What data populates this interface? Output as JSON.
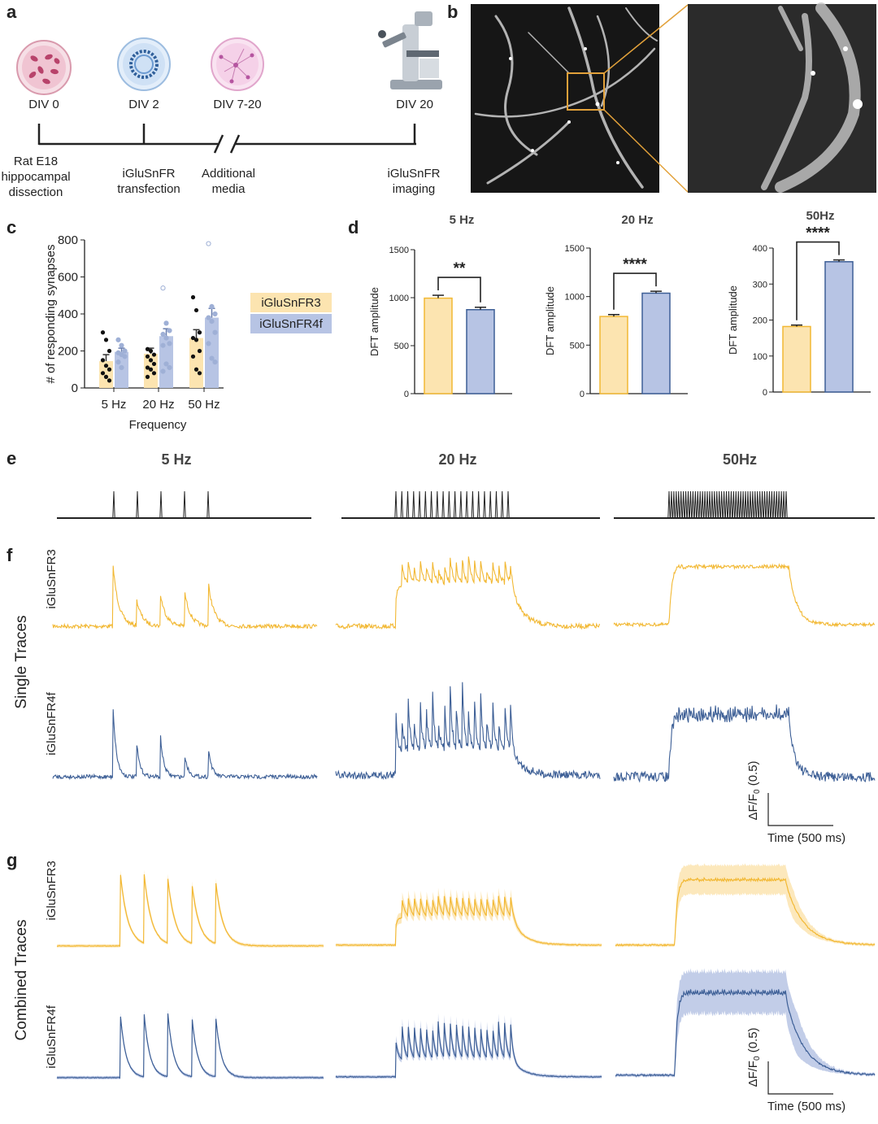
{
  "panels": {
    "a": "a",
    "b": "b",
    "c": "c",
    "d": "d",
    "e": "e",
    "f": "f",
    "g": "g"
  },
  "timeline": {
    "points": [
      {
        "day": "DIV 0",
        "desc1": "Rat E18",
        "desc2": "hippocampal",
        "desc3": "dissection"
      },
      {
        "day": "DIV 2",
        "desc1": "iGluSnFR",
        "desc2": "transfection"
      },
      {
        "day": "DIV 7-20",
        "desc1": "Additional",
        "desc2": "media"
      },
      {
        "day": "DIV 20",
        "desc1": "iGluSnFR",
        "desc2": "imaging"
      }
    ]
  },
  "legend": {
    "r3": "iGluSnFR3",
    "r4f": "iGluSnFR4f"
  },
  "colors": {
    "r3": "#f2b833",
    "r3_fill": "#fce4b0",
    "r4f": "#3d5f96",
    "r4f_fill": "#b7c4e4",
    "axis": "#222222"
  },
  "chart_data": [
    {
      "type": "bar",
      "id": "c",
      "title": "",
      "xlabel": "Frequency",
      "ylabel": "# of responding synapses",
      "categories": [
        "5 Hz",
        "20 Hz",
        "50 Hz"
      ],
      "ylim": [
        0,
        800
      ],
      "yticks": [
        "0",
        "200",
        "400",
        "600",
        "800"
      ],
      "series": [
        {
          "name": "iGluSnFR3",
          "values": [
            145,
            185,
            270
          ],
          "sem": [
            35,
            30,
            45
          ],
          "points": [
            [
              300,
              260,
              200,
              150,
              120,
              100,
              80,
              60,
              40
            ],
            [
              210,
              200,
              180,
              170,
              150,
              130,
              110,
              100,
              80,
              60
            ],
            [
              490,
              420,
              300,
              270,
              260,
              200,
              170,
              100,
              80
            ]
          ]
        },
        {
          "name": "iGluSnFR4f",
          "values": [
            195,
            280,
            380
          ],
          "sem": [
            20,
            40,
            50
          ],
          "points": [
            [
              260,
              230,
              200,
              190,
              180,
              170,
              140,
              110
            ],
            [
              540,
              350,
              310,
              290,
              270,
              240,
              230,
              130,
              110,
              90
            ],
            [
              780,
              440,
              400,
              380,
              360,
              300,
              240,
              160,
              140
            ]
          ]
        }
      ]
    },
    {
      "type": "bar",
      "id": "d1",
      "title": "5 Hz",
      "ylabel": "DFT amplitude",
      "categories": [
        "iGluSnFR3",
        "iGluSnFR4f"
      ],
      "ylim": [
        0,
        1500
      ],
      "yticks": [
        "0",
        "500",
        "1000",
        "1500"
      ],
      "values": [
        995,
        875
      ],
      "sem": [
        30,
        25
      ],
      "significance": "**"
    },
    {
      "type": "bar",
      "id": "d2",
      "title": "20 Hz",
      "ylabel": "DFT amplitude",
      "categories": [
        "iGluSnFR3",
        "iGluSnFR4f"
      ],
      "ylim": [
        0,
        1500
      ],
      "yticks": [
        "0",
        "500",
        "1000",
        "1500"
      ],
      "values": [
        795,
        1035
      ],
      "sem": [
        20,
        20
      ],
      "significance": "****"
    },
    {
      "type": "bar",
      "id": "d3",
      "title": "50Hz",
      "ylabel": "DFT amplitude",
      "categories": [
        "iGluSnFR3",
        "iGluSnFR4f"
      ],
      "ylim": [
        0,
        400
      ],
      "yticks": [
        "0",
        "100",
        "200",
        "300",
        "400"
      ],
      "values": [
        182,
        362
      ],
      "sem": [
        4,
        5
      ],
      "significance": "****"
    }
  ],
  "stimulus": {
    "headers": [
      "5 Hz",
      "20 Hz",
      "50Hz"
    ],
    "pulses": [
      5,
      20,
      50
    ]
  },
  "traces": {
    "single_label": "Single Traces",
    "combined_label": "Combined Traces",
    "row_r3": "iGluSnFR3",
    "row_r4f": "iGluSnFR4f",
    "scale_y": "ΔF/F",
    "scale_y_sub": "0",
    "scale_y_val": "(0.5)",
    "scale_x": "Time (500 ms)"
  }
}
